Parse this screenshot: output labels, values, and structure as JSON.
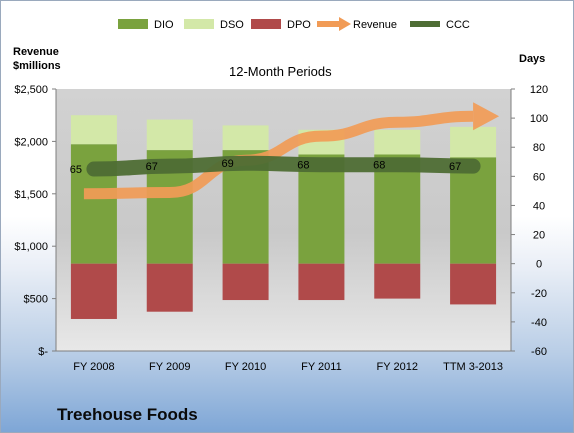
{
  "company": "Treehouse Foods",
  "chart_data": {
    "type": "bar",
    "title": "12-Month Periods",
    "ylabel_left": "Revenue $millions",
    "ylabel_right": "Days",
    "categories": [
      "FY 2008",
      "FY 2009",
      "FY 2010",
      "FY 2011",
      "FY 2012",
      "TTM 3-2013"
    ],
    "left_axis": {
      "min": 0,
      "max": 2500,
      "ticks": [
        "$-",
        "$500",
        "$1,000",
        "$1,500",
        "$2,000",
        "$2,500"
      ]
    },
    "right_axis": {
      "min": -60,
      "max": 120,
      "ticks": [
        "-60",
        "-40",
        "-20",
        "0",
        "20",
        "40",
        "60",
        "80",
        "100",
        "120"
      ]
    },
    "series": [
      {
        "name": "DIO",
        "axis": "right",
        "kind": "stacked-bar",
        "color": "#7aa23e",
        "values": [
          82,
          78,
          78,
          75,
          75,
          73
        ]
      },
      {
        "name": "DSO",
        "axis": "right",
        "kind": "stacked-bar",
        "color": "#d3e8a8",
        "values": [
          20,
          21,
          17,
          17,
          17,
          21
        ]
      },
      {
        "name": "DPO",
        "axis": "right",
        "kind": "negative-bar",
        "color": "#b04a4a",
        "values": [
          -38,
          -33,
          -25,
          -25,
          -24,
          -28
        ]
      },
      {
        "name": "Revenue",
        "axis": "left",
        "kind": "arrow-line",
        "color": "#f19b56",
        "values": [
          1500,
          1512,
          1820,
          2050,
          2183,
          2240
        ]
      },
      {
        "name": "CCC",
        "axis": "right",
        "kind": "line",
        "color": "#4e6d34",
        "values": [
          65,
          67,
          69,
          68,
          68,
          67
        ]
      }
    ],
    "ccc_labels": [
      "65",
      "67",
      "69",
      "68",
      "68",
      "67"
    ],
    "legend_position": "top",
    "grid": false
  }
}
